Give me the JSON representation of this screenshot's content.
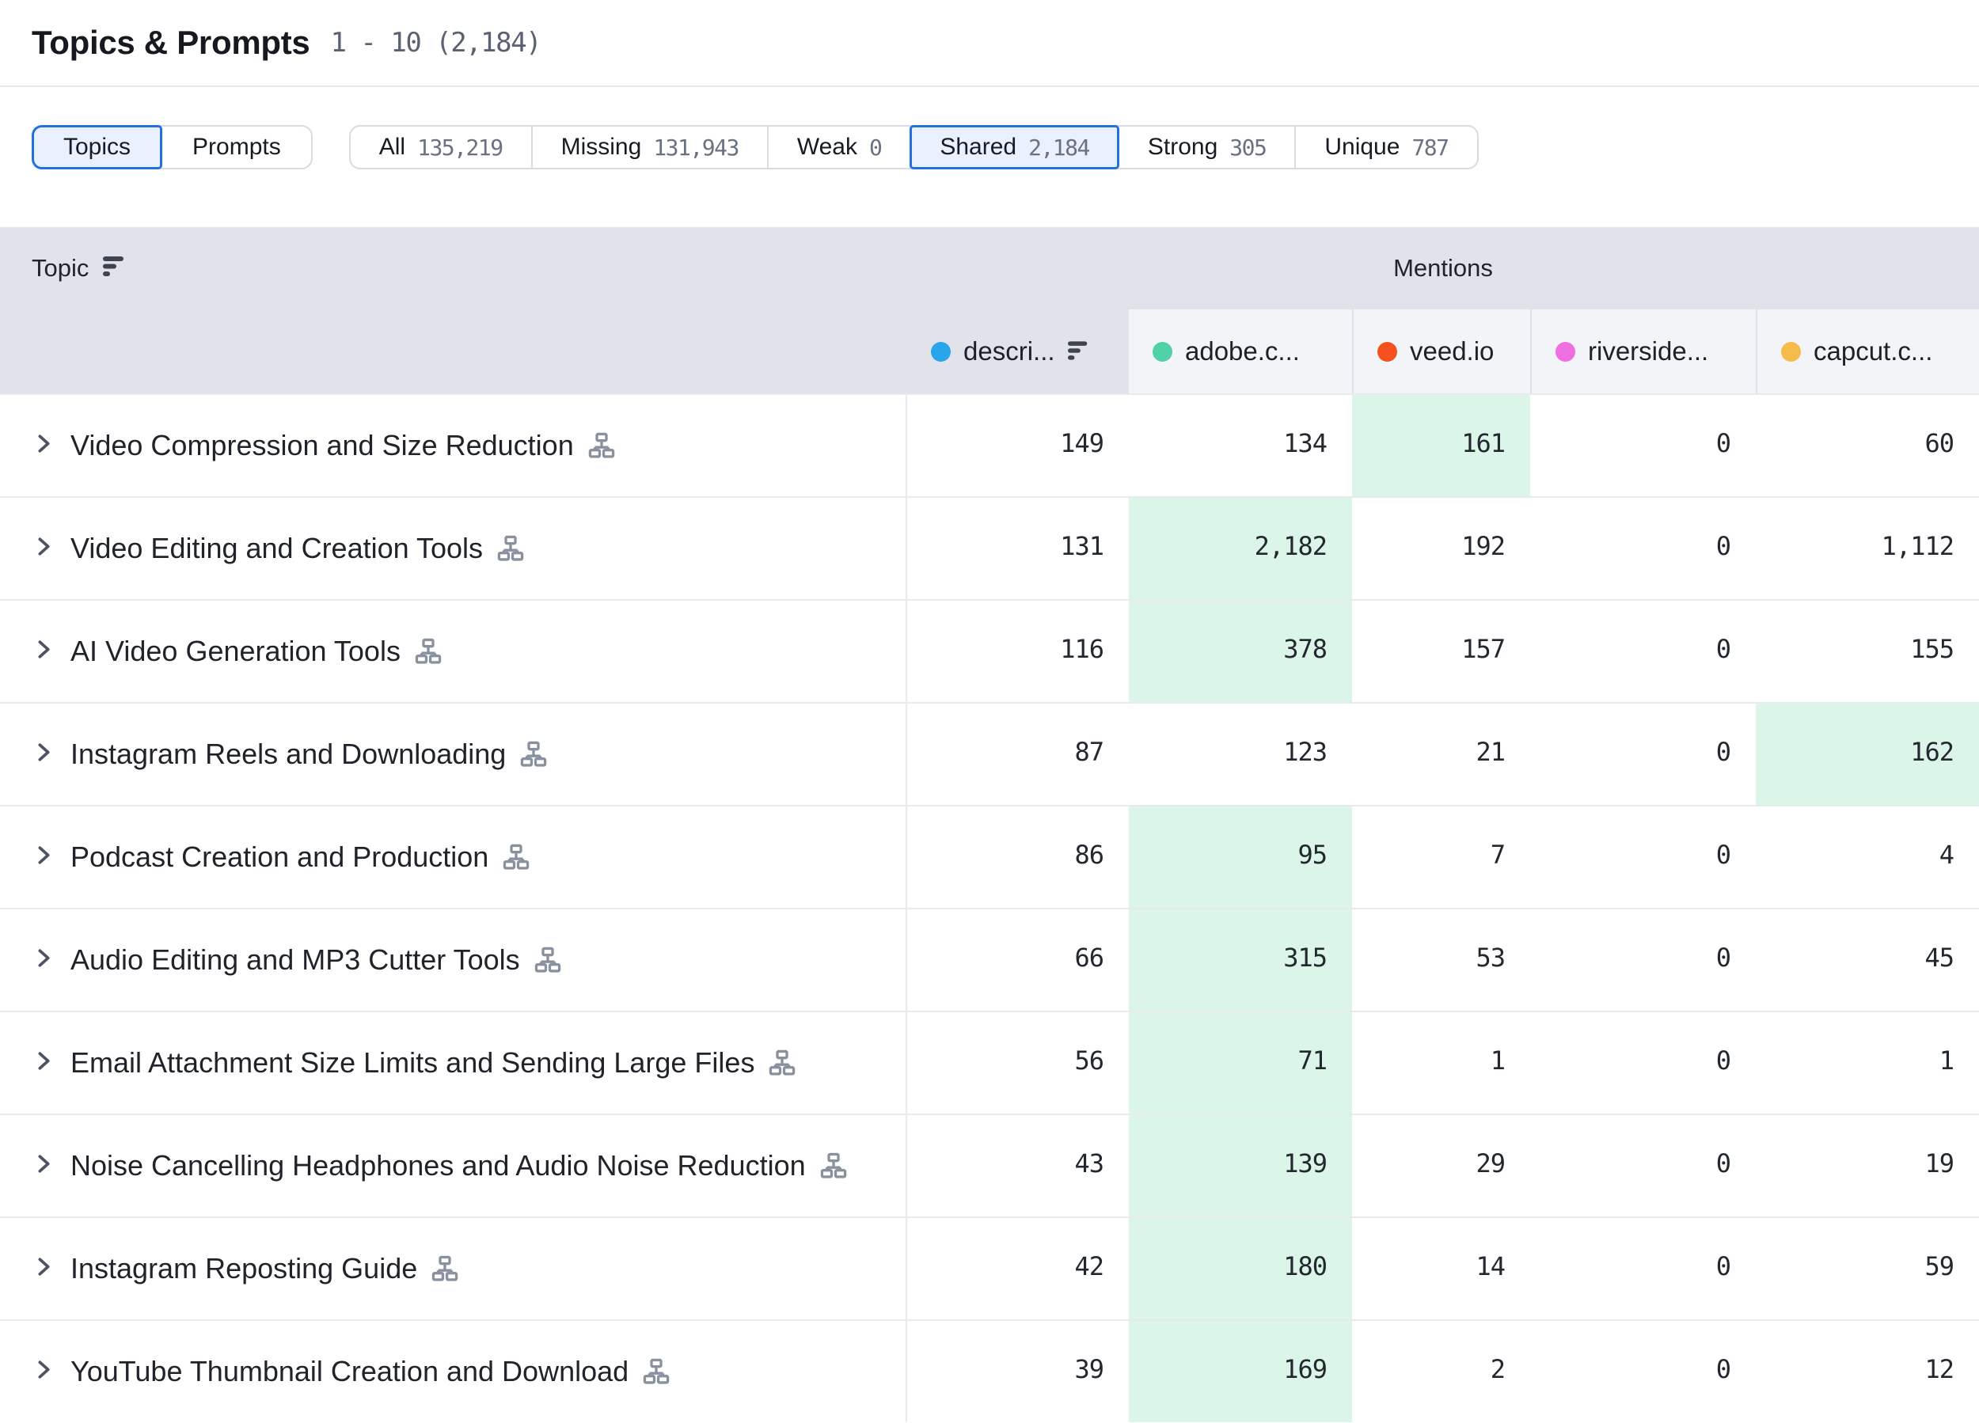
{
  "header": {
    "title": "Topics & Prompts",
    "range": "1 - 10 (2,184)"
  },
  "filters": {
    "view_toggle": [
      {
        "label": "Topics",
        "selected": true
      },
      {
        "label": "Prompts",
        "selected": false
      }
    ],
    "segments": [
      {
        "label": "All",
        "count": "135,219",
        "selected": false
      },
      {
        "label": "Missing",
        "count": "131,943",
        "selected": false
      },
      {
        "label": "Weak",
        "count": "0",
        "selected": false
      },
      {
        "label": "Shared",
        "count": "2,184",
        "selected": true
      },
      {
        "label": "Strong",
        "count": "305",
        "selected": false
      },
      {
        "label": "Unique",
        "count": "787",
        "selected": false
      }
    ]
  },
  "table": {
    "topic_header": "Topic",
    "mentions_header": "Mentions",
    "columns": [
      {
        "label": "descri...",
        "dot_color": "#29A5EC",
        "sorted": true
      },
      {
        "label": "adobe.c...",
        "dot_color": "#4FD3A6",
        "sorted": false
      },
      {
        "label": "veed.io",
        "dot_color": "#F4511E",
        "sorted": false
      },
      {
        "label": "riverside...",
        "dot_color": "#EF6FE2",
        "sorted": false
      },
      {
        "label": "capcut.c...",
        "dot_color": "#F5BC4C",
        "sorted": false
      }
    ],
    "rows": [
      {
        "topic": "Video Compression and Size Reduction",
        "values": [
          "149",
          "134",
          "161",
          "0",
          "60"
        ],
        "highlight": 2
      },
      {
        "topic": "Video Editing and Creation Tools",
        "values": [
          "131",
          "2,182",
          "192",
          "0",
          "1,112"
        ],
        "highlight": 1
      },
      {
        "topic": "AI Video Generation Tools",
        "values": [
          "116",
          "378",
          "157",
          "0",
          "155"
        ],
        "highlight": 1
      },
      {
        "topic": "Instagram Reels and Downloading",
        "values": [
          "87",
          "123",
          "21",
          "0",
          "162"
        ],
        "highlight": 4
      },
      {
        "topic": "Podcast Creation and Production",
        "values": [
          "86",
          "95",
          "7",
          "0",
          "4"
        ],
        "highlight": 1
      },
      {
        "topic": "Audio Editing and MP3 Cutter Tools",
        "values": [
          "66",
          "315",
          "53",
          "0",
          "45"
        ],
        "highlight": 1
      },
      {
        "topic": "Email Attachment Size Limits and Sending Large Files",
        "values": [
          "56",
          "71",
          "1",
          "0",
          "1"
        ],
        "highlight": 1
      },
      {
        "topic": "Noise Cancelling Headphones and Audio Noise Reduction",
        "values": [
          "43",
          "139",
          "29",
          "0",
          "19"
        ],
        "highlight": 1
      },
      {
        "topic": "Instagram Reposting Guide",
        "values": [
          "42",
          "180",
          "14",
          "0",
          "59"
        ],
        "highlight": 1
      },
      {
        "topic": "YouTube Thumbnail Creation and Download",
        "values": [
          "39",
          "169",
          "2",
          "0",
          "12"
        ],
        "highlight": 1
      }
    ]
  },
  "colors": {
    "accent_blue": "#2470E1",
    "accent_blue_bg": "#E8F1FD",
    "highlight_green": "#DBF6E8",
    "header_gray": "#E2E3EA",
    "subheader_gray": "#F3F4F8"
  }
}
